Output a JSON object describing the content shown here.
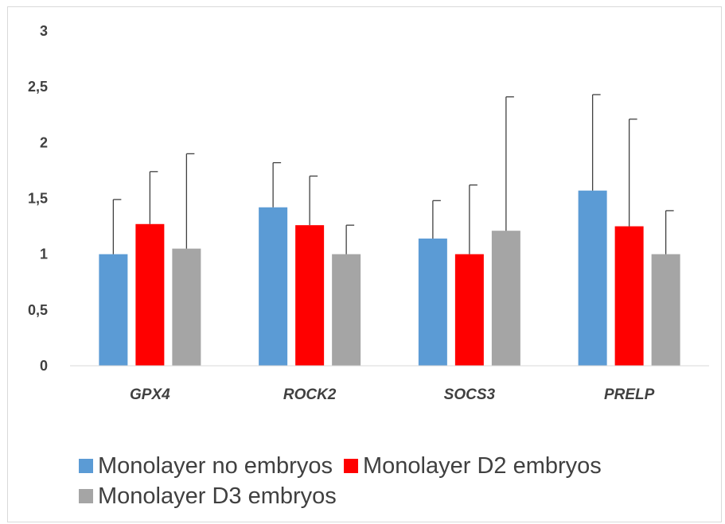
{
  "chart_data": {
    "type": "bar",
    "title": "",
    "xlabel": "",
    "ylabel": "",
    "ylim": [
      0,
      3
    ],
    "yticks": [
      "0",
      "0,5",
      "1",
      "1,5",
      "2",
      "2,5",
      "3"
    ],
    "ytick_values": [
      0,
      0.5,
      1,
      1.5,
      2,
      2.5,
      3
    ],
    "categories": [
      "GPX4",
      "ROCK2",
      "SOCS3",
      "PRELP"
    ],
    "series": [
      {
        "name": "Monolayer no embryos",
        "color": "#5b9bd5",
        "values": [
          1.0,
          1.42,
          1.14,
          1.57
        ],
        "error_upper": [
          0.49,
          0.4,
          0.34,
          0.86
        ]
      },
      {
        "name": "Monolayer D2 embryos",
        "color": "#ff0000",
        "values": [
          1.27,
          1.26,
          1.0,
          1.25
        ],
        "error_upper": [
          0.47,
          0.44,
          0.62,
          0.96
        ]
      },
      {
        "name": "Monolayer D3 embryos",
        "color": "#a5a5a5",
        "values": [
          1.05,
          1.0,
          1.21,
          1.0
        ],
        "error_upper": [
          0.85,
          0.26,
          1.2,
          0.39
        ]
      }
    ],
    "legend_position": "bottom",
    "grid": false
  }
}
